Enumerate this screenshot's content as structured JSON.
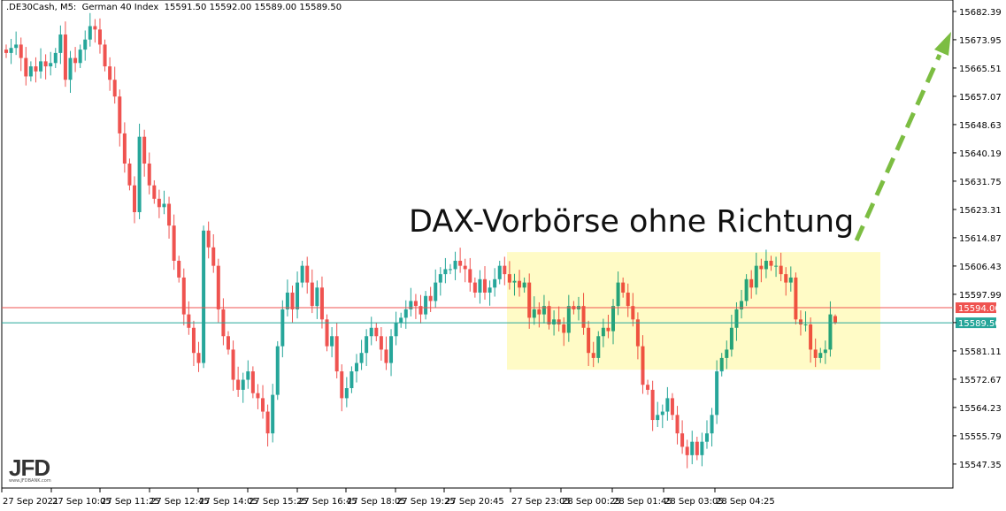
{
  "header": {
    "symbol": ".DE30Cash, M5:",
    "name": "German 40 Index",
    "ohlc": "15591.50 15592.00 15589.00 15589.50"
  },
  "logo": {
    "main": "JFD",
    "sub": "www.JFDBANK.com"
  },
  "annotation": {
    "text": "DAX-Vorbörse ohne Richtung",
    "box_color": "#fff9a0",
    "arrow_color": "#7cbd42"
  },
  "colors": {
    "up": "#26a69a",
    "down": "#ef5350",
    "bid_line": "#ef5350",
    "last_line": "#26a69a"
  },
  "chart_data": {
    "type": "candlestick",
    "title": ".DE30Cash, M5: German 40 Index",
    "ylim": [
      15540.2,
      15685.8
    ],
    "y_ticks": [
      "15682.39",
      "15673.95",
      "15665.51",
      "15657.07",
      "15648.63",
      "15640.19",
      "15631.75",
      "15623.31",
      "15614.87",
      "15606.43",
      "15597.99",
      "15589.55",
      "15581.11",
      "15572.67",
      "15564.23",
      "15555.79",
      "15547.35"
    ],
    "x_ticks": [
      "27 Sep 2021",
      "27 Sep 10:05",
      "27 Sep 11:25",
      "27 Sep 12:45",
      "27 Sep 14:05",
      "27 Sep 15:25",
      "27 Sep 16:45",
      "27 Sep 18:05",
      "27 Sep 19:25",
      "27 Sep 20:45",
      "27 Sep 23:05",
      "28 Sep 00:25",
      "28 Sep 01:45",
      "28 Sep 03:05",
      "28 Sep 04:25"
    ],
    "price_lines": [
      {
        "value": "15594.00",
        "color": "#ef5350"
      },
      {
        "value": "15589.50",
        "color": "#26a69a"
      }
    ],
    "range_box": {
      "high": 15610.6,
      "low": 15575.5
    },
    "last_bar": {
      "open": 15591.5,
      "high": 15592.0,
      "low": 15589.0,
      "close": 15589.5
    },
    "close": [
      15670.0,
      15671.5,
      15672.5,
      15668.5,
      15663.0,
      15666.0,
      15664.5,
      15667.5,
      15666.0,
      15667.0,
      15670.0,
      15675.5,
      15662.0,
      15668.5,
      15667.0,
      15671.0,
      15674.0,
      15678.0,
      15677.0,
      15672.5,
      15666.0,
      15662.0,
      15657.0,
      15646.0,
      15637.0,
      15630.5,
      15622.5,
      15645.0,
      15637.0,
      15630.5,
      15626.5,
      15624.0,
      15625.0,
      15618.5,
      15608.0,
      15603.0,
      15592.0,
      15588.0,
      15580.5,
      15577.5,
      15617.0,
      15612.0,
      15606.5,
      15593.5,
      15585.5,
      15581.5,
      15572.5,
      15569.5,
      15572.5,
      15575.0,
      15568.5,
      15567.0,
      15563.0,
      15556.5,
      15568.0,
      15582.5,
      15593.5,
      15598.5,
      15593.5,
      15601.5,
      15606.5,
      15601.5,
      15594.5,
      15600.0,
      15590.5,
      15582.5,
      15585.5,
      15575.0,
      15567.0,
      15570.0,
      15575.0,
      15577.5,
      15580.5,
      15585.5,
      15588.0,
      15585.5,
      15581.5,
      15577.5,
      15585.5,
      15589.5,
      15591.0,
      15593.5,
      15596.0,
      15594.5,
      15592.0,
      15597.5,
      15596.0,
      15601.5,
      15604.0,
      15605.5,
      15605.5,
      15608.0,
      15606.5,
      15605.5,
      15601.5,
      15598.5,
      15602.5,
      15598.5,
      15600.0,
      15602.5,
      15606.5,
      15604.0,
      15601.5,
      15602.0,
      15600.0,
      15601.5,
      15591.0,
      15593.5,
      15592.0,
      15594.5,
      15589.0,
      15590.5,
      15589.0,
      15586.5,
      15594.5,
      15593.5,
      15594.5,
      15588.0,
      15580.5,
      15579.0,
      15585.5,
      15588.0,
      15587.0,
      15594.5,
      15601.5,
      15598.5,
      15594.5,
      15590.5,
      15582.5,
      15571.0,
      15569.5,
      15560.5,
      15562.0,
      15563.0,
      15567.0,
      15562.0,
      15556.5,
      15552.5,
      15550.0,
      15554.0,
      15550.0,
      15554.0,
      15556.5,
      15562.0,
      15575.0,
      15579.0,
      15581.5,
      15588.0,
      15593.5,
      15596.0,
      15602.5,
      15600.0,
      15606.5,
      15605.5,
      15608.0,
      15606.5,
      15606.5,
      15604.0,
      15601.5,
      15603.0,
      15590.5,
      15589.0,
      15589.0,
      15581.5,
      15579.0,
      15580.5,
      15581.5,
      15592.0,
      15589.5
    ]
  }
}
